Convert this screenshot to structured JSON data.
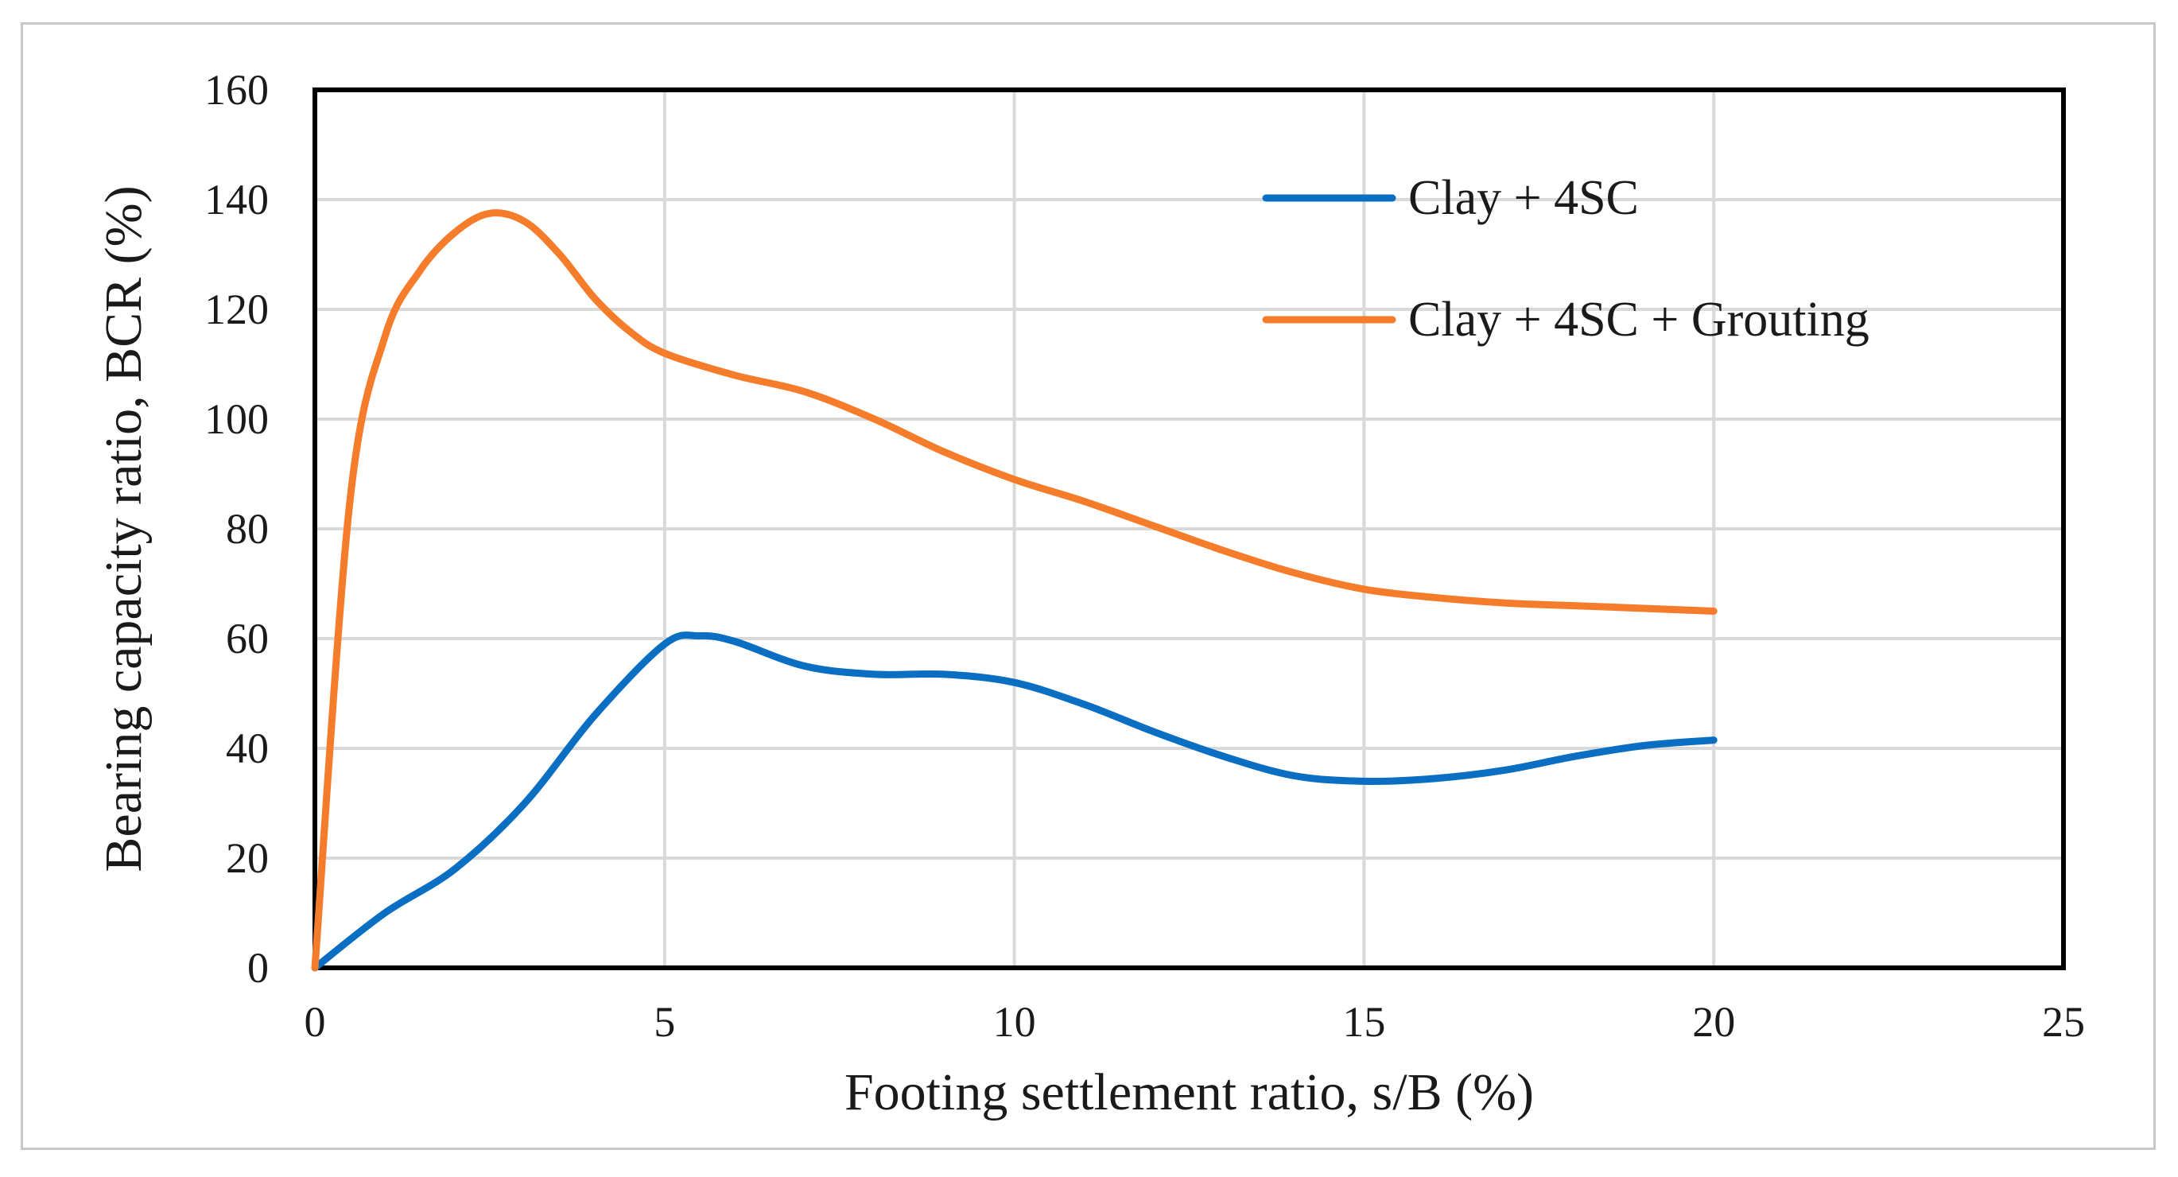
{
  "chart_data": {
    "type": "line",
    "title": "",
    "xlabel": "Footing settlement ratio, s/B (%)",
    "ylabel": "Bearing capacity ratio, BCR (%)",
    "xlim": [
      0,
      25
    ],
    "ylim": [
      0,
      160
    ],
    "xticks": [
      0,
      5,
      10,
      15,
      20,
      25
    ],
    "yticks": [
      0,
      20,
      40,
      60,
      80,
      100,
      120,
      140,
      160
    ],
    "grid": true,
    "legend_position": "top-right",
    "series": [
      {
        "name": "Clay + 4SC",
        "color": "#0a6fc2",
        "x": [
          0,
          1,
          2,
          3,
          4,
          5,
          5.5,
          6,
          7,
          8,
          9,
          10,
          11,
          12,
          13,
          14,
          15,
          16,
          17,
          18,
          19,
          20
        ],
        "y": [
          0,
          10,
          18,
          30,
          46,
          59,
          60.5,
          59.5,
          55,
          53.5,
          53.5,
          52,
          48,
          43,
          38.5,
          35,
          34,
          34.5,
          36,
          38.5,
          40.5,
          41.5
        ]
      },
      {
        "name": "Clay + 4SC + Grouting",
        "color": "#f57c2a",
        "x": [
          0,
          0.5,
          1,
          1.5,
          2,
          2.5,
          3,
          3.5,
          4,
          4.5,
          5,
          6,
          7,
          8,
          9,
          10,
          11,
          12,
          13,
          14,
          15,
          16,
          17,
          18,
          19,
          20
        ],
        "y": [
          0,
          85,
          115,
          127,
          134,
          137.5,
          136,
          130,
          122,
          116,
          112,
          108,
          105,
          100,
          94,
          89,
          85,
          80.5,
          76,
          72,
          69,
          67.5,
          66.5,
          66,
          65.5,
          65
        ]
      }
    ]
  }
}
